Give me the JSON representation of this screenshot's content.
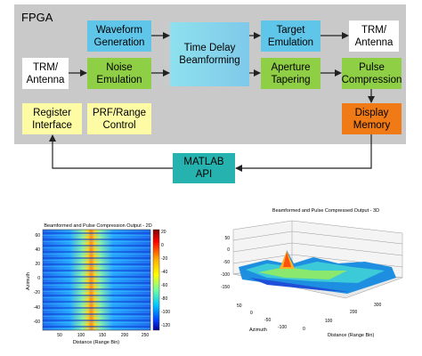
{
  "diagram": {
    "fpga_label": "FPGA",
    "blocks": {
      "waveform_generation": "Waveform\nGeneration",
      "time_delay_beamforming": "Time Delay\nBeamforming",
      "target_emulation": "Target\nEmulation",
      "trm_antenna_out": "TRM/\nAntenna",
      "trm_antenna_in": "TRM/\nAntenna",
      "noise_emulation": "Noise\nEmulation",
      "aperture_tapering": "Aperture\nTapering",
      "pulse_compression": "Pulse\nCompression",
      "register_interface": "Register\nInterface",
      "prf_range_control": "PRF/Range\nControl",
      "display_memory": "Display\nMemory",
      "matlab_api": "MATLAB\nAPI"
    }
  },
  "plot_2d": {
    "title": "Beamformed and Pulse Compression Output - 2D",
    "xlabel": "Distance (Range Bin)",
    "ylabel": "Azimuth",
    "xticks": [
      "50",
      "100",
      "150",
      "200",
      "250"
    ],
    "yticks": [
      "60",
      "40",
      "20",
      "0",
      "-20",
      "-40",
      "-60"
    ],
    "colorbar_ticks": [
      "20",
      "0",
      "-20",
      "-40",
      "-60",
      "-80",
      "-100",
      "-120"
    ]
  },
  "plot_3d": {
    "title": "Beamformed and Pulse Compressed Output - 3D",
    "zticks": [
      "50",
      "0",
      "-50",
      "-100",
      "-150"
    ],
    "azimuth_label": "Azimuth",
    "azimuth_ticks": [
      "50",
      "0",
      "-50",
      "-100"
    ],
    "distance_label": "Distance (Range Bin)",
    "distance_ticks": [
      "300",
      "200",
      "100",
      "0"
    ]
  }
}
